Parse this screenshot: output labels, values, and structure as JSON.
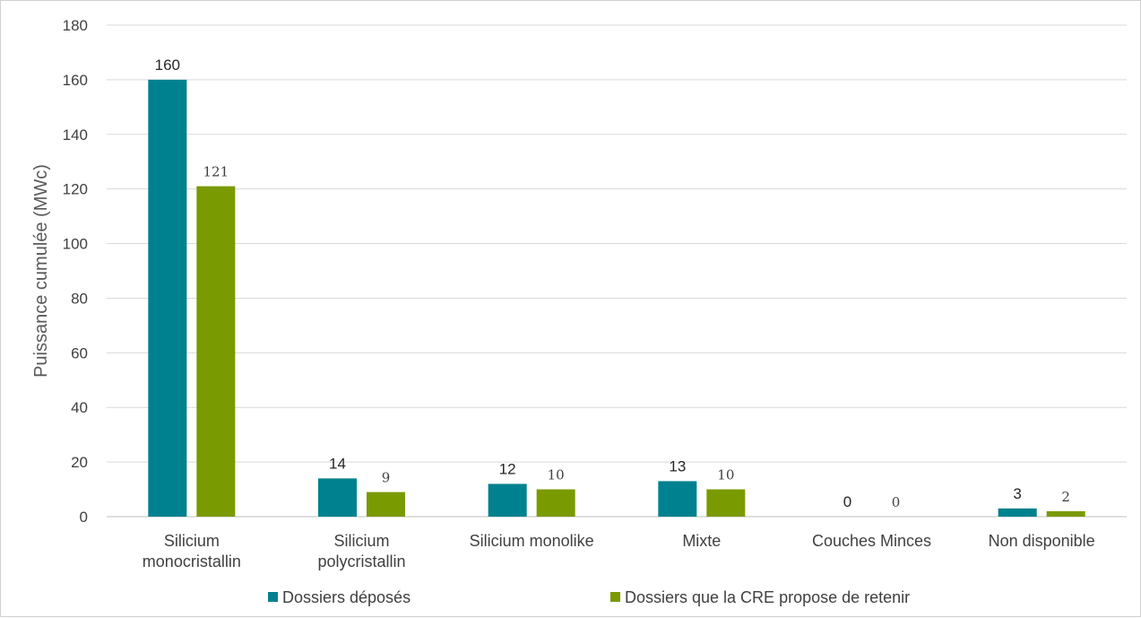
{
  "chart_data": {
    "type": "bar",
    "ylabel": "Puissance cumulée (MWc)",
    "ylim": [
      0,
      180
    ],
    "yticks": [
      0,
      20,
      40,
      60,
      80,
      100,
      120,
      140,
      160,
      180
    ],
    "grid": true,
    "legend_position": "bottom",
    "categories": [
      [
        "Silicium",
        "monocristallin"
      ],
      [
        "Silicium",
        "polycristallin"
      ],
      [
        "Silicium monolike"
      ],
      [
        "Mixte"
      ],
      [
        "Couches Minces"
      ],
      [
        "Non disponible"
      ]
    ],
    "series": [
      {
        "name": "Dossiers déposés",
        "color": "#00818f",
        "values": [
          160,
          14,
          12,
          13,
          0,
          3
        ],
        "labels": [
          "160",
          "14",
          "12",
          "13",
          "0",
          "3"
        ]
      },
      {
        "name": "Dossiers que la CRE propose de retenir",
        "color": "#7a9a01",
        "values": [
          121,
          9,
          10,
          10,
          0,
          2
        ],
        "labels": [
          "121",
          "9",
          "10",
          "10",
          "0",
          "2"
        ]
      }
    ]
  }
}
